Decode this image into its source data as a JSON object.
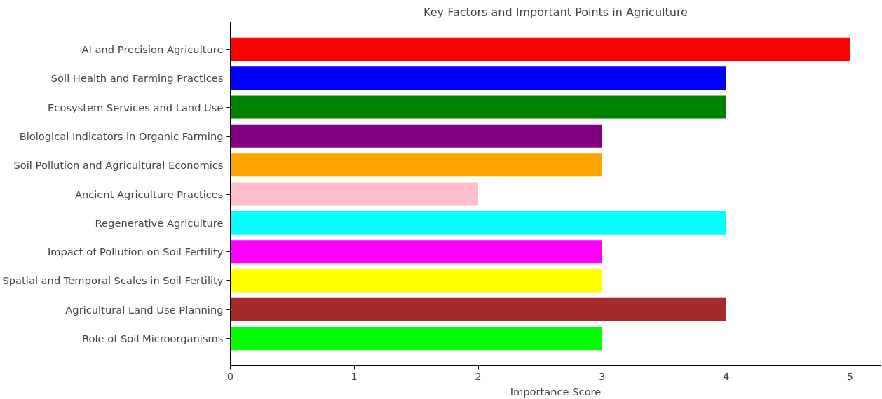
{
  "chart_data": {
    "type": "bar",
    "orientation": "horizontal",
    "title": "Key Factors and Important Points in Agriculture",
    "xlabel": "Importance Score",
    "categories": [
      "AI and Precision Agriculture",
      "Soil Health and Farming Practices",
      "Ecosystem Services and Land Use",
      "Biological Indicators in Organic Farming",
      "Soil Pollution and Agricultural Economics",
      "Ancient Agriculture Practices",
      "Regenerative Agriculture",
      "Impact of Pollution on Soil Fertility",
      "Spatial and Temporal Scales in Soil Fertility",
      "Agricultural Land Use Planning",
      "Role of Soil Microorganisms"
    ],
    "values": [
      5,
      4,
      4,
      3,
      3,
      2,
      4,
      3,
      3,
      4,
      3
    ],
    "colors": [
      "#ff0000",
      "#0000ff",
      "#008000",
      "#800080",
      "#ffa500",
      "#ffc0cb",
      "#00ffff",
      "#ff00ff",
      "#ffff00",
      "#a52a2a",
      "#00ff00"
    ],
    "xlim": [
      0,
      5.25
    ],
    "xticks": [
      0,
      1,
      2,
      3,
      4,
      5
    ],
    "grid": false
  }
}
